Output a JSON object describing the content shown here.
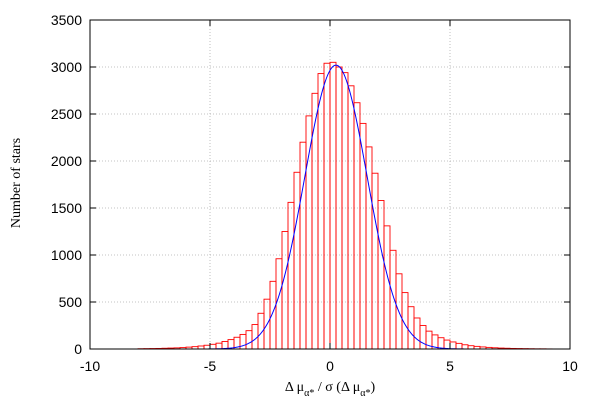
{
  "chart_data": {
    "type": "bar",
    "subtype": "histogram with fitted gaussian curve",
    "xlabel": {
      "pre": "Δ μ",
      "sub1": "α*",
      "mid": " / σ (Δ μ",
      "sub2": "α*",
      "post": ")"
    },
    "ylabel": "Number of stars",
    "xlim": [
      -10,
      10
    ],
    "ylim": [
      0,
      3500
    ],
    "xticks": [
      "-10",
      "-5",
      "0",
      "5",
      "10"
    ],
    "xtick_values": [
      -10,
      -5,
      0,
      5,
      10
    ],
    "yticks": [
      "0",
      "500",
      "1000",
      "1500",
      "2000",
      "2500",
      "3000",
      "3500"
    ],
    "ytick_values": [
      0,
      500,
      1000,
      1500,
      2000,
      2500,
      3000,
      3500
    ],
    "grid": true,
    "bin_width": 0.25,
    "histogram": {
      "color": "#ff0000",
      "bin_starts": [
        -8.0,
        -7.75,
        -7.5,
        -7.25,
        -7.0,
        -6.75,
        -6.5,
        -6.25,
        -6.0,
        -5.75,
        -5.5,
        -5.25,
        -5.0,
        -4.75,
        -4.5,
        -4.25,
        -4.0,
        -3.75,
        -3.5,
        -3.25,
        -3.0,
        -2.75,
        -2.5,
        -2.25,
        -2.0,
        -1.75,
        -1.5,
        -1.25,
        -1.0,
        -0.75,
        -0.5,
        -0.25,
        0.0,
        0.25,
        0.5,
        0.75,
        1.0,
        1.25,
        1.5,
        1.75,
        2.0,
        2.25,
        2.5,
        2.75,
        3.0,
        3.25,
        3.5,
        3.75,
        4.0,
        4.25,
        4.5,
        4.75,
        5.0,
        5.25,
        5.5,
        5.75,
        6.0,
        6.25,
        6.5,
        6.75,
        7.0,
        7.25,
        7.5,
        7.75,
        8.0,
        8.25,
        8.5,
        8.75,
        9.0
      ],
      "counts": [
        3,
        4,
        5,
        6,
        8,
        10,
        12,
        15,
        20,
        25,
        32,
        40,
        50,
        62,
        80,
        100,
        125,
        155,
        195,
        260,
        380,
        530,
        720,
        960,
        1250,
        1560,
        1880,
        2200,
        2480,
        2720,
        2930,
        3040,
        3050,
        3000,
        2940,
        2800,
        2620,
        2400,
        2150,
        1870,
        1580,
        1310,
        1050,
        800,
        600,
        450,
        330,
        250,
        190,
        150,
        120,
        95,
        75,
        60,
        45,
        35,
        28,
        22,
        17,
        13,
        10,
        8,
        6,
        5,
        4,
        3,
        2,
        2,
        1
      ]
    },
    "fit": {
      "color": "#0000ff",
      "type": "gaussian",
      "amplitude": 3020,
      "mean": 0.25,
      "sigma": 1.3
    }
  }
}
